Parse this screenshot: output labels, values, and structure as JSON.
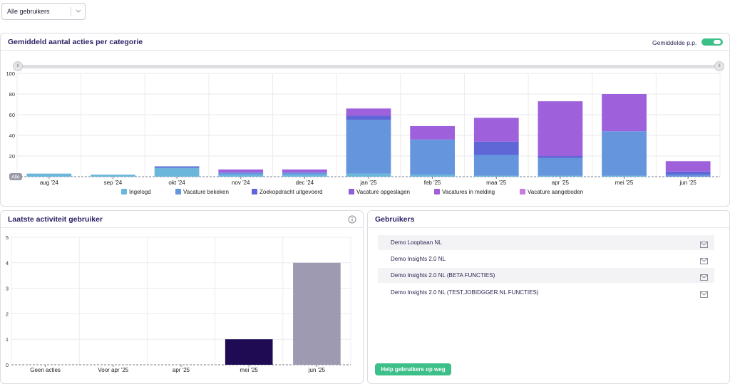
{
  "filter": {
    "selected": "Alle gebruikers"
  },
  "actions_card": {
    "title": "Gemiddeld aantal acties per categorie",
    "toggle_label": "Gemiddelde p.p.",
    "toggle_on": true,
    "range_handle_left": "II",
    "range_handle_right": "II",
    "all_tag": "Alle"
  },
  "activity_card": {
    "title": "Laatste activiteit gebruiker",
    "info_icon": "info-icon"
  },
  "users_card": {
    "title": "Gebruikers",
    "users": [
      {
        "name": "Demo Loopbaan NL",
        "icon": "mail-icon"
      },
      {
        "name": "Demo Insights 2.0 NL",
        "icon": "mail-icon"
      },
      {
        "name": "Demo Insights 2.0 NL (BETA FUNCTIES)",
        "icon": "mail-icon"
      },
      {
        "name": "Demo Insights 2.0 NL (TEST.JOBIDGGER.NL FUNCTIES)",
        "icon": "mail-icon"
      }
    ],
    "help_button": "Help gebruikers op weg"
  },
  "colors": {
    "Ingelogd": "#6bb7dc",
    "Vacature bekeken": "#6595dd",
    "Zoekopdracht uitgevoerd": "#5f67d6",
    "Vacature opgeslagen": "#8d5fd8",
    "Vacatures in melding": "#9f60dc",
    "Vacature aangeboden": "#c77ae0",
    "accent": "#3dbf8a",
    "activity_bar_dark": "#1f0b54",
    "activity_bar_light": "#9e9ab1"
  },
  "chart_data": [
    {
      "type": "bar",
      "stacked": true,
      "title": "Gemiddeld aantal acties per categorie",
      "categories": [
        "aug '24",
        "sep '24",
        "okt '24",
        "nov '24",
        "dec '24",
        "jan '25",
        "feb '25",
        "maa '25",
        "apr '25",
        "mei '25",
        "jun '25"
      ],
      "ylim": [
        0,
        100
      ],
      "yticks": [
        0,
        20,
        40,
        60,
        80,
        100
      ],
      "legend_position": "bottom",
      "grid": true,
      "series": [
        {
          "name": "Ingelogd",
          "values": [
            3,
            2,
            8,
            2,
            2,
            3,
            2,
            1,
            1,
            1,
            0
          ]
        },
        {
          "name": "Vacature bekeken",
          "values": [
            0,
            0,
            1,
            2,
            2,
            52,
            34,
            20,
            17,
            43,
            2
          ]
        },
        {
          "name": "Zoekopdracht uitgevoerd",
          "values": [
            0,
            0,
            1,
            0,
            0,
            4,
            0,
            13,
            2,
            0,
            3
          ]
        },
        {
          "name": "Vacature opgeslagen",
          "values": [
            0,
            0,
            0,
            0,
            0,
            0,
            0,
            0,
            0,
            0,
            0
          ]
        },
        {
          "name": "Vacatures in melding",
          "values": [
            0,
            0,
            0,
            3,
            3,
            7,
            13,
            23,
            53,
            36,
            10
          ]
        },
        {
          "name": "Vacature aangeboden",
          "values": [
            0,
            0,
            0,
            0,
            0,
            0,
            0,
            0,
            0,
            0,
            0
          ]
        }
      ]
    },
    {
      "type": "bar",
      "title": "Laatste activiteit gebruiker",
      "categories": [
        "Geen acties",
        "Voor apr '25",
        "apr '25",
        "mei '25",
        "jun '25"
      ],
      "values": [
        0,
        0,
        0,
        1,
        4
      ],
      "ylim": [
        0,
        5
      ],
      "yticks": [
        0,
        1,
        2,
        3,
        4,
        5
      ],
      "grid": true
    }
  ]
}
